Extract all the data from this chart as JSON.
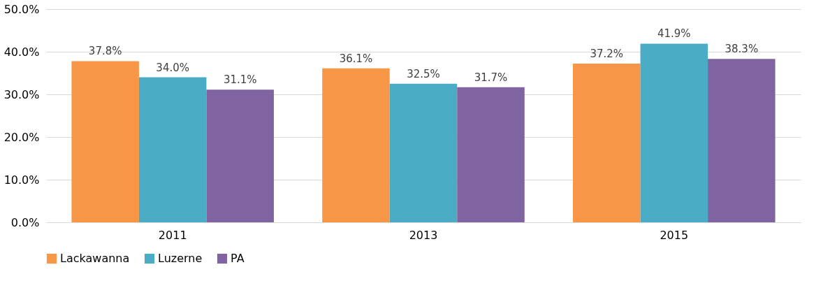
{
  "chart_data": {
    "type": "bar",
    "categories": [
      "2011",
      "2013",
      "2015"
    ],
    "series": [
      {
        "name": "Lackawanna",
        "color": "#f79646",
        "values": [
          37.8,
          36.1,
          37.2
        ],
        "value_labels": [
          "37.8%",
          "36.1%",
          "37.2%"
        ]
      },
      {
        "name": "Luzerne",
        "color": "#4bacc6",
        "values": [
          34.0,
          32.5,
          41.9
        ],
        "value_labels": [
          "34.0%",
          "32.5%",
          "41.9%"
        ]
      },
      {
        "name": "PA",
        "color": "#8064a2",
        "values": [
          31.1,
          31.7,
          38.3
        ],
        "value_labels": [
          "31.1%",
          "31.7%",
          "38.3%"
        ]
      }
    ],
    "ylim": [
      0,
      50
    ],
    "yticks": [
      {
        "value": 0,
        "label": "0.0%"
      },
      {
        "value": 10,
        "label": "10.0%"
      },
      {
        "value": 20,
        "label": "20.0%"
      },
      {
        "value": 30,
        "label": "30.0%"
      },
      {
        "value": 40,
        "label": "40.0%"
      },
      {
        "value": 50,
        "label": "50.0%"
      }
    ],
    "grid": "y",
    "legend": "bottom"
  }
}
